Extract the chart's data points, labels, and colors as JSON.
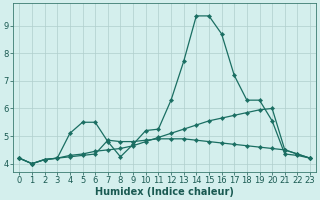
{
  "xlabel": "Humidex (Indice chaleur)",
  "bg_color": "#d4efed",
  "grid_color": "#b0cecc",
  "line_color": "#1a6e62",
  "xlim": [
    -0.5,
    23.5
  ],
  "ylim": [
    3.7,
    9.8
  ],
  "xticks": [
    0,
    1,
    2,
    3,
    4,
    5,
    6,
    7,
    8,
    9,
    10,
    11,
    12,
    13,
    14,
    15,
    16,
    17,
    18,
    19,
    20,
    21,
    22,
    23
  ],
  "yticks": [
    4,
    5,
    6,
    7,
    8,
    9
  ],
  "line_peak_x": [
    0,
    1,
    2,
    3,
    4,
    5,
    6,
    7,
    8,
    9,
    10,
    11,
    12,
    13,
    14,
    15,
    16,
    17,
    18,
    19,
    20,
    21,
    22,
    23
  ],
  "line_peak_y": [
    4.2,
    4.0,
    4.15,
    4.2,
    5.1,
    5.5,
    5.5,
    4.8,
    4.25,
    4.7,
    5.2,
    5.25,
    6.3,
    7.7,
    9.35,
    9.35,
    8.7,
    7.2,
    6.3,
    6.3,
    5.55,
    4.35,
    4.3,
    4.2
  ],
  "line_upper_x": [
    0,
    1,
    2,
    3,
    4,
    5,
    6,
    7,
    8,
    9,
    10,
    11,
    12,
    13,
    14,
    15,
    16,
    17,
    18,
    19,
    20,
    21,
    22,
    23
  ],
  "line_upper_y": [
    4.2,
    4.0,
    4.15,
    4.2,
    4.3,
    4.35,
    4.45,
    4.5,
    4.55,
    4.65,
    4.8,
    4.95,
    5.1,
    5.25,
    5.4,
    5.55,
    5.65,
    5.75,
    5.85,
    5.95,
    6.0,
    4.5,
    4.35,
    4.2
  ],
  "line_lower_x": [
    0,
    1,
    2,
    3,
    4,
    5,
    6,
    7,
    8,
    9,
    10,
    11,
    12,
    13,
    14,
    15,
    16,
    17,
    18,
    19,
    20,
    21,
    22,
    23
  ],
  "line_lower_y": [
    4.2,
    4.0,
    4.15,
    4.2,
    4.25,
    4.3,
    4.35,
    4.85,
    4.8,
    4.8,
    4.85,
    4.9,
    4.9,
    4.9,
    4.85,
    4.8,
    4.75,
    4.7,
    4.65,
    4.6,
    4.55,
    4.5,
    4.35,
    4.2
  ],
  "markersize": 2.2,
  "linewidth": 0.9,
  "xlabel_fontsize": 7,
  "tick_fontsize": 6,
  "tick_color": "#1a5a52",
  "spine_color": "#3a7a70"
}
